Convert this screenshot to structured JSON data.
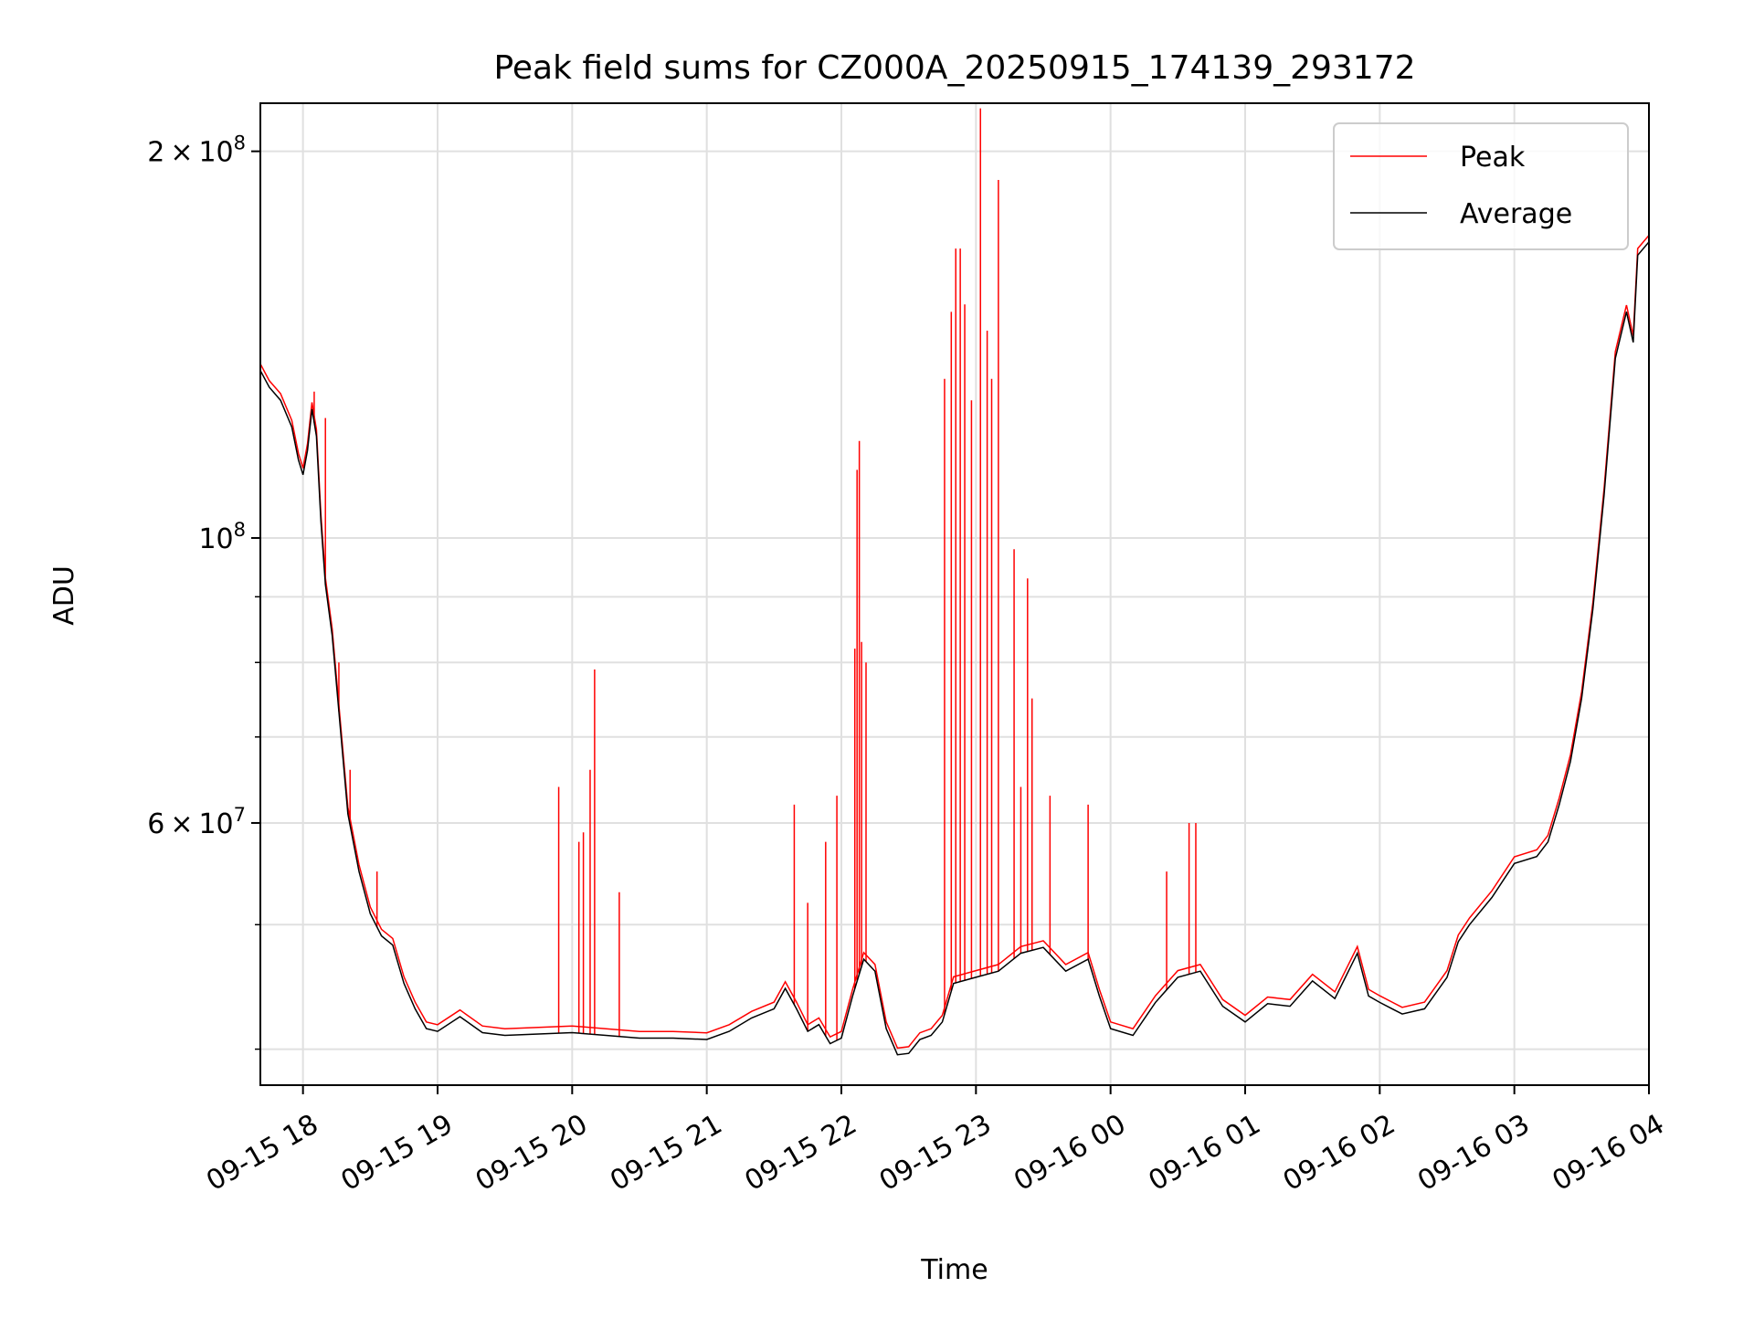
{
  "chart_data": {
    "type": "line",
    "title": "Peak field sums for CZ000A_20250915_174139_293172",
    "xlabel": "Time",
    "ylabel": "ADU",
    "y_scale": "log",
    "xlim": [
      "2025-09-15 17:41",
      "2025-09-16 04:00"
    ],
    "ylim": [
      37500000,
      218000000
    ],
    "grid": true,
    "legend_position": "top-right",
    "x_ticks": [
      {
        "t": "2025-09-15 18:00",
        "label": "09-15 18"
      },
      {
        "t": "2025-09-15 19:00",
        "label": "09-15 19"
      },
      {
        "t": "2025-09-15 20:00",
        "label": "09-15 20"
      },
      {
        "t": "2025-09-15 21:00",
        "label": "09-15 21"
      },
      {
        "t": "2025-09-15 22:00",
        "label": "09-15 22"
      },
      {
        "t": "2025-09-15 23:00",
        "label": "09-15 23"
      },
      {
        "t": "2025-09-16 00:00",
        "label": "09-16 00"
      },
      {
        "t": "2025-09-16 01:00",
        "label": "09-16 01"
      },
      {
        "t": "2025-09-16 02:00",
        "label": "09-16 02"
      },
      {
        "t": "2025-09-16 03:00",
        "label": "09-16 03"
      },
      {
        "t": "2025-09-16 04:00",
        "label": "09-16 04"
      }
    ],
    "y_major_ticks": [
      {
        "value": 60000000,
        "mant": "6",
        "exp": "7"
      },
      {
        "value": 100000000,
        "mant": "",
        "exp": "8"
      },
      {
        "value": 200000000,
        "mant": "2",
        "exp": "8"
      }
    ],
    "y_minor_ticks": [
      40000000,
      50000000,
      70000000,
      80000000,
      90000000
    ],
    "series": [
      {
        "name": "Average",
        "color": "#000000",
        "points": [
          [
            "2025-09-15 17:41",
            135000000
          ],
          [
            "2025-09-15 17:45",
            131000000
          ],
          [
            "2025-09-15 17:50",
            128000000
          ],
          [
            "2025-09-15 17:55",
            122000000
          ],
          [
            "2025-09-15 17:58",
            115000000
          ],
          [
            "2025-09-15 18:00",
            112000000
          ],
          [
            "2025-09-15 18:02",
            117000000
          ],
          [
            "2025-09-15 18:04",
            126000000
          ],
          [
            "2025-09-15 18:06",
            120000000
          ],
          [
            "2025-09-15 18:08",
            103000000
          ],
          [
            "2025-09-15 18:10",
            92000000
          ],
          [
            "2025-09-15 18:13",
            84000000
          ],
          [
            "2025-09-15 18:17",
            70000000
          ],
          [
            "2025-09-15 18:20",
            61000000
          ],
          [
            "2025-09-15 18:25",
            55000000
          ],
          [
            "2025-09-15 18:30",
            51000000
          ],
          [
            "2025-09-15 18:35",
            49000000
          ],
          [
            "2025-09-15 18:40",
            48200000
          ],
          [
            "2025-09-15 18:45",
            45000000
          ],
          [
            "2025-09-15 18:50",
            43000000
          ],
          [
            "2025-09-15 18:55",
            41500000
          ],
          [
            "2025-09-15 19:00",
            41300000
          ],
          [
            "2025-09-15 19:10",
            42400000
          ],
          [
            "2025-09-15 19:20",
            41200000
          ],
          [
            "2025-09-15 19:30",
            41000000
          ],
          [
            "2025-09-15 19:45",
            41100000
          ],
          [
            "2025-09-15 20:00",
            41200000
          ],
          [
            "2025-09-15 20:15",
            41000000
          ],
          [
            "2025-09-15 20:30",
            40800000
          ],
          [
            "2025-09-15 20:45",
            40800000
          ],
          [
            "2025-09-15 21:00",
            40700000
          ],
          [
            "2025-09-15 21:10",
            41300000
          ],
          [
            "2025-09-15 21:20",
            42300000
          ],
          [
            "2025-09-15 21:30",
            43000000
          ],
          [
            "2025-09-15 21:35",
            44600000
          ],
          [
            "2025-09-15 21:40",
            43000000
          ],
          [
            "2025-09-15 21:45",
            41300000
          ],
          [
            "2025-09-15 21:50",
            41800000
          ],
          [
            "2025-09-15 21:55",
            40400000
          ],
          [
            "2025-09-15 22:00",
            40800000
          ],
          [
            "2025-09-15 22:05",
            44000000
          ],
          [
            "2025-09-15 22:10",
            47000000
          ],
          [
            "2025-09-15 22:15",
            46000000
          ],
          [
            "2025-09-15 22:20",
            41500000
          ],
          [
            "2025-09-15 22:25",
            39600000
          ],
          [
            "2025-09-15 22:30",
            39700000
          ],
          [
            "2025-09-15 22:35",
            40700000
          ],
          [
            "2025-09-15 22:40",
            41000000
          ],
          [
            "2025-09-15 22:45",
            42000000
          ],
          [
            "2025-09-15 22:50",
            45000000
          ],
          [
            "2025-09-15 23:00",
            45500000
          ],
          [
            "2025-09-15 23:10",
            46000000
          ],
          [
            "2025-09-15 23:20",
            47500000
          ],
          [
            "2025-09-15 23:30",
            48000000
          ],
          [
            "2025-09-15 23:40",
            46000000
          ],
          [
            "2025-09-15 23:50",
            47000000
          ],
          [
            "2025-09-15 23:55",
            44000000
          ],
          [
            "2025-09-16 00:00",
            41500000
          ],
          [
            "2025-09-16 00:10",
            41000000
          ],
          [
            "2025-09-16 00:20",
            43500000
          ],
          [
            "2025-09-16 00:30",
            45500000
          ],
          [
            "2025-09-16 00:40",
            46000000
          ],
          [
            "2025-09-16 00:50",
            43200000
          ],
          [
            "2025-09-16 01:00",
            42000000
          ],
          [
            "2025-09-16 01:10",
            43400000
          ],
          [
            "2025-09-16 01:20",
            43200000
          ],
          [
            "2025-09-16 01:30",
            45200000
          ],
          [
            "2025-09-16 01:40",
            43800000
          ],
          [
            "2025-09-16 01:50",
            47500000
          ],
          [
            "2025-09-16 01:55",
            44000000
          ],
          [
            "2025-09-16 02:00",
            43500000
          ],
          [
            "2025-09-16 02:10",
            42600000
          ],
          [
            "2025-09-16 02:20",
            43000000
          ],
          [
            "2025-09-16 02:30",
            45500000
          ],
          [
            "2025-09-16 02:35",
            48500000
          ],
          [
            "2025-09-16 02:40",
            50000000
          ],
          [
            "2025-09-16 02:50",
            52500000
          ],
          [
            "2025-09-16 03:00",
            55800000
          ],
          [
            "2025-09-16 03:10",
            56500000
          ],
          [
            "2025-09-16 03:15",
            58000000
          ],
          [
            "2025-09-16 03:20",
            62000000
          ],
          [
            "2025-09-16 03:25",
            67000000
          ],
          [
            "2025-09-16 03:30",
            75000000
          ],
          [
            "2025-09-16 03:35",
            88000000
          ],
          [
            "2025-09-16 03:40",
            108000000
          ],
          [
            "2025-09-16 03:45",
            138000000
          ],
          [
            "2025-09-16 03:50",
            150000000
          ],
          [
            "2025-09-16 03:53",
            142000000
          ],
          [
            "2025-09-16 03:55",
            166000000
          ],
          [
            "2025-09-16 04:00",
            170000000
          ]
        ]
      },
      {
        "name": "Peak",
        "color": "#ff0000",
        "spikes": [
          [
            "2025-09-15 18:05",
            130000000
          ],
          [
            "2025-09-15 18:10",
            124000000
          ],
          [
            "2025-09-15 18:16",
            80000000
          ],
          [
            "2025-09-15 18:21",
            66000000
          ],
          [
            "2025-09-15 18:33",
            55000000
          ],
          [
            "2025-09-15 19:54",
            64000000
          ],
          [
            "2025-09-15 20:03",
            58000000
          ],
          [
            "2025-09-15 20:05",
            59000000
          ],
          [
            "2025-09-15 20:08",
            66000000
          ],
          [
            "2025-09-15 20:10",
            79000000
          ],
          [
            "2025-09-15 20:21",
            53000000
          ],
          [
            "2025-09-15 21:39",
            62000000
          ],
          [
            "2025-09-15 21:45",
            52000000
          ],
          [
            "2025-09-15 21:53",
            58000000
          ],
          [
            "2025-09-15 21:58",
            63000000
          ],
          [
            "2025-09-15 22:06",
            82000000
          ],
          [
            "2025-09-15 22:07",
            113000000
          ],
          [
            "2025-09-15 22:08",
            119000000
          ],
          [
            "2025-09-15 22:09",
            83000000
          ],
          [
            "2025-09-15 22:11",
            80000000
          ],
          [
            "2025-09-15 22:46",
            133000000
          ],
          [
            "2025-09-15 22:49",
            150000000
          ],
          [
            "2025-09-15 22:51",
            168000000
          ],
          [
            "2025-09-15 22:53",
            168000000
          ],
          [
            "2025-09-15 22:55",
            152000000
          ],
          [
            "2025-09-15 22:58",
            128000000
          ],
          [
            "2025-09-15 23:02",
            216000000
          ],
          [
            "2025-09-15 23:05",
            145000000
          ],
          [
            "2025-09-15 23:07",
            133000000
          ],
          [
            "2025-09-15 23:10",
            190000000
          ],
          [
            "2025-09-15 23:17",
            98000000
          ],
          [
            "2025-09-15 23:20",
            64000000
          ],
          [
            "2025-09-15 23:23",
            93000000
          ],
          [
            "2025-09-15 23:25",
            75000000
          ],
          [
            "2025-09-15 23:33",
            63000000
          ],
          [
            "2025-09-15 23:50",
            62000000
          ],
          [
            "2025-09-16 00:25",
            55000000
          ],
          [
            "2025-09-16 00:35",
            60000000
          ],
          [
            "2025-09-16 00:38",
            60000000
          ]
        ]
      }
    ]
  }
}
